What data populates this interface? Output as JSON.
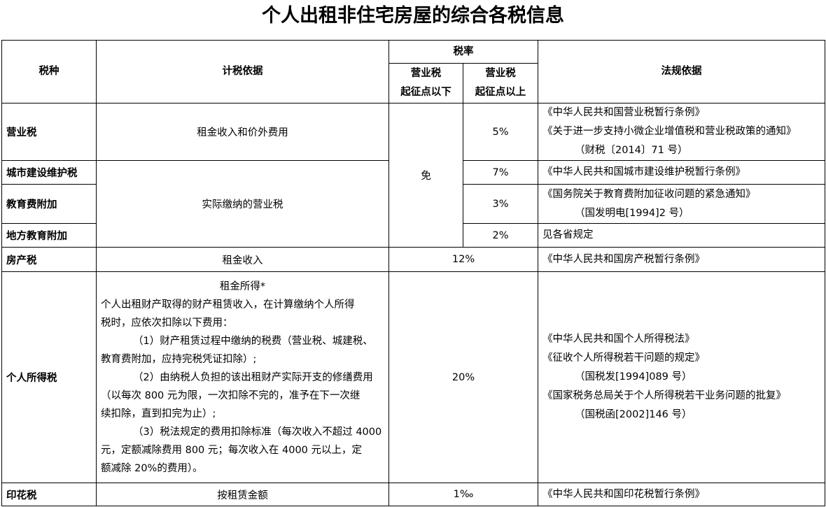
{
  "title": "个人出租非住宅房屋的综合各税信息",
  "header": {
    "tax_type": "税种",
    "basis": "计税依据",
    "rate": "税率",
    "rate_below": [
      "营业税",
      "起征点以下"
    ],
    "rate_above": [
      "营业税",
      "起征点以上"
    ],
    "law": "法规依据"
  },
  "rows": {
    "business": {
      "name": "营业税",
      "basis": "租金收入和价外费用",
      "rate": "5%",
      "law": [
        "《中华人民共和国营业税暂行条例》",
        "《关于进一步支持小微企业增值税和营业税政策的通知》",
        "（财税〔2014〕71 号）"
      ]
    },
    "exempt": "免",
    "surtax_basis": "实际缴纳的营业税",
    "urban": {
      "name": "城市建设维护税",
      "rate": "7%",
      "law": [
        "《中华人民共和国城市建设维护税暂行条例》"
      ]
    },
    "education": {
      "name": "教育费附加",
      "rate": "3%",
      "law": [
        "《国务院关于教育费附加征收问题的紧急通知》",
        "（国发明电[1994]2 号）"
      ]
    },
    "local_education": {
      "name": "地方教育附加",
      "rate": "2%",
      "law": [
        "见各省规定"
      ]
    },
    "property": {
      "name": "房产税",
      "basis": "租金收入",
      "rate": "12%",
      "law": [
        "《中华人民共和国房产税暂行条例》"
      ]
    },
    "income": {
      "name": "个人所得税",
      "basis_title": "租金所得*",
      "basis_lines": [
        "个人出租财产取得的财产租赁收入，在计算缴纳个人所得",
        "税时，应依次扣除以下费用：",
        "（1）财产租赁过程中缴纳的税费（营业税、城建税、",
        "教育费附加，应持完税凭证扣除）;",
        "（2）由纳税人负担的该出租财产实际开支的修缮费用",
        "（以每次 800 元为限，一次扣除不完的，准予在下一次继",
        "续扣除，直到扣完为止）;",
        "（3）税法规定的费用扣除标准（每次收入不超过 4000",
        "元，定额减除费用 800 元；每次收入在 4000 元以上，定",
        "额减除 20%的费用）。"
      ],
      "rate": "20%",
      "law": [
        "《中华人民共和国个人所得税法》",
        "《征收个人所得税若干问题的规定》",
        "（国税发[1994]089 号）",
        "《国家税务总局关于个人所得税若干业务问题的批复》",
        "（国税函[2002]146 号）"
      ]
    },
    "stamp": {
      "name": "印花税",
      "basis": "按租赁金额",
      "rate": "1‰",
      "law": [
        "《中华人民共和国印花税暂行条例》"
      ]
    }
  }
}
